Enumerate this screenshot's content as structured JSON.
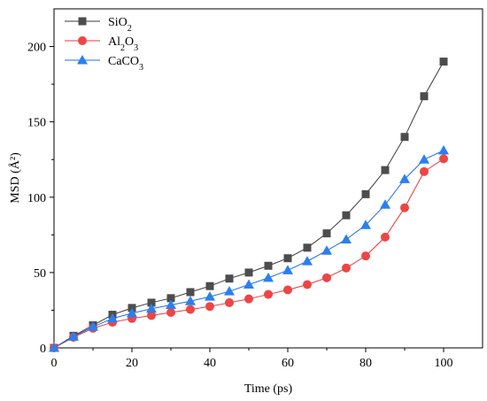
{
  "chart_data": {
    "type": "line",
    "xlabel": "Time (ps)",
    "ylabel": "MSD (Å²)",
    "xlim": [
      0,
      110
    ],
    "ylim": [
      0,
      225
    ],
    "x_ticks": [
      0,
      20,
      40,
      60,
      80,
      100
    ],
    "y_ticks": [
      0,
      50,
      100,
      150,
      200
    ],
    "x_tick_labels": [
      "0",
      "20",
      "40",
      "60",
      "80",
      "100"
    ],
    "y_tick_labels": [
      "0",
      "50",
      "100",
      "150",
      "200"
    ],
    "grid": false,
    "legend_position": "top-left",
    "x": [
      0,
      5,
      10,
      15,
      20,
      25,
      30,
      35,
      40,
      45,
      50,
      55,
      60,
      65,
      70,
      75,
      80,
      85,
      90,
      95,
      100
    ],
    "series": [
      {
        "name": "SiO2",
        "legend": {
          "base": "SiO",
          "sub1": "2",
          "mid": "",
          "sub2": ""
        },
        "marker": "square",
        "color": "#3a3a3a",
        "fill": "#4d4d4d",
        "values": [
          0,
          8,
          15,
          22,
          26.5,
          30,
          33,
          37,
          41,
          46,
          50,
          54.5,
          59.5,
          66.5,
          76,
          88,
          102,
          118,
          140,
          167,
          190
        ]
      },
      {
        "name": "Al2O3",
        "legend": {
          "base": "Al",
          "sub1": "2",
          "mid": "O",
          "sub2": "3"
        },
        "marker": "circle",
        "color": "#e8383b",
        "fill": "#ee4545",
        "values": [
          0,
          7,
          13,
          17,
          19.5,
          21.5,
          23.5,
          25.5,
          27.5,
          30,
          32.5,
          35.5,
          38.5,
          42,
          46.5,
          53,
          61,
          73.5,
          93,
          117,
          125.5
        ]
      },
      {
        "name": "CaCO3",
        "legend": {
          "base": "CaCO",
          "sub1": "3",
          "mid": "",
          "sub2": ""
        },
        "marker": "triangle",
        "color": "#1f6fe0",
        "fill": "#2a7ff0",
        "values": [
          0,
          7.5,
          14,
          19.5,
          23,
          26,
          28.5,
          31,
          34,
          37.5,
          42,
          46.5,
          51.5,
          57.5,
          64.5,
          72,
          81.5,
          95,
          112,
          125,
          131
        ]
      }
    ]
  }
}
